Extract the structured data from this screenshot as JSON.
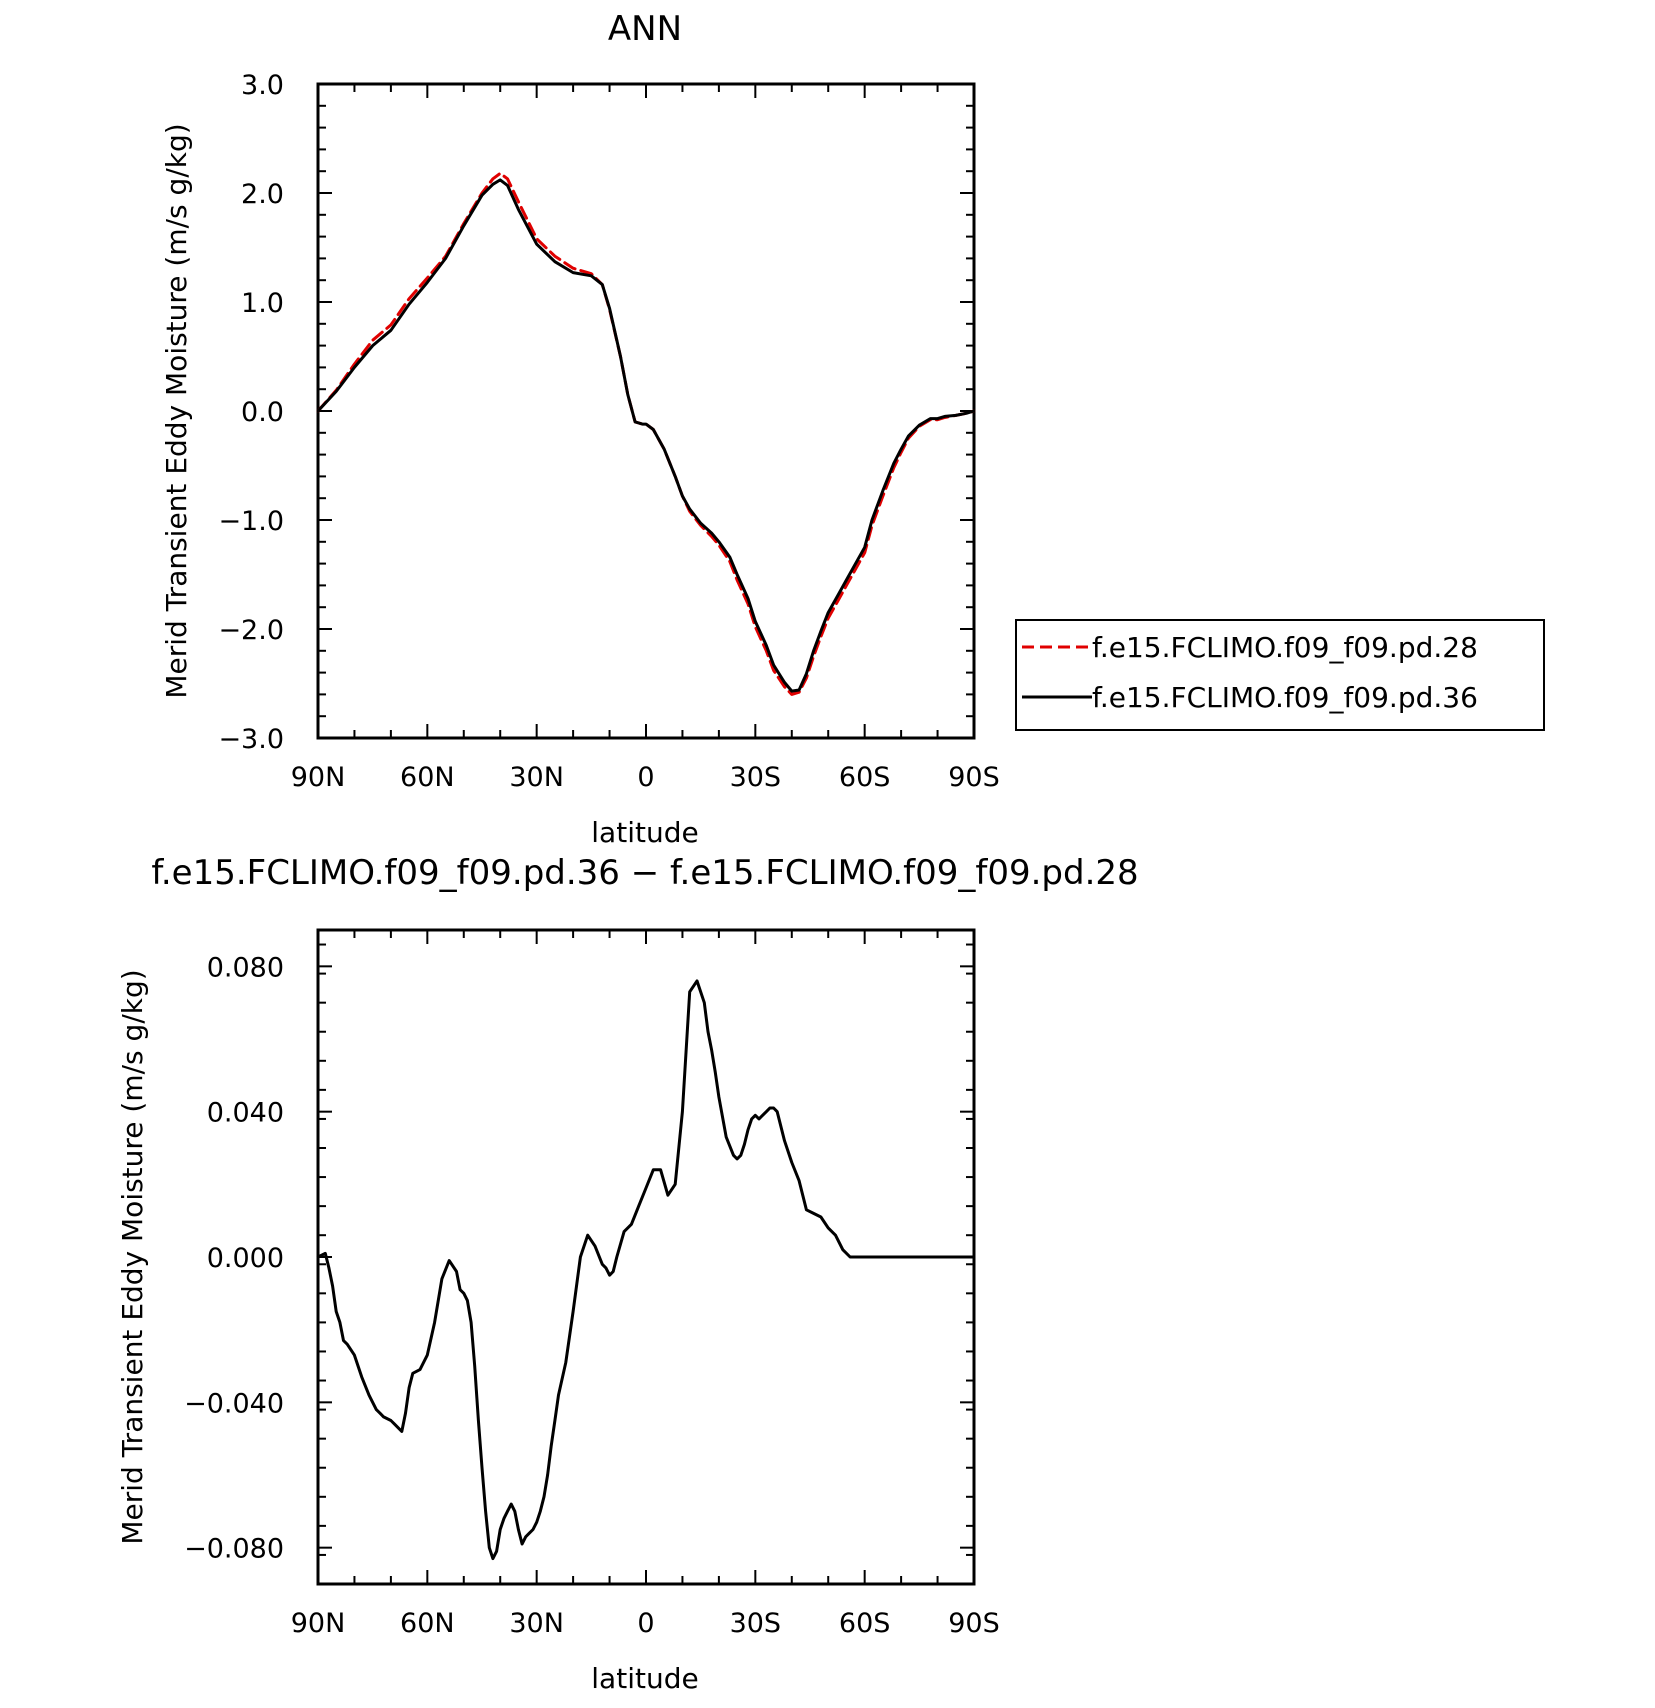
{
  "chart_data": [
    {
      "type": "line",
      "title": "ANN",
      "xlabel": "latitude",
      "ylabel": "Merid Transient Eddy Moisture (m/s g/kg)",
      "xlim": [
        90,
        -90
      ],
      "ylim": [
        -3.0,
        3.0
      ],
      "x_tick_values": [
        90,
        60,
        30,
        0,
        -30,
        -60,
        -90
      ],
      "x_tick_labels": [
        "90N",
        "60N",
        "30N",
        "0",
        "30S",
        "60S",
        "90S"
      ],
      "y_tick_values": [
        3.0,
        2.0,
        1.0,
        0.0,
        -1.0,
        -2.0,
        -3.0
      ],
      "y_tick_labels": [
        "3.0",
        "2.0",
        "1.0",
        "0.0",
        "−1.0",
        "−2.0",
        "−3.0"
      ],
      "grid": false,
      "legend_position": "right",
      "series": [
        {
          "name": "f.e15.FCLIMO.f09_f09.pd.28",
          "color": "#e00000",
          "dash": "dashed",
          "x": [
            90,
            85,
            80,
            75,
            70,
            65,
            60,
            55,
            50,
            45,
            42,
            40,
            38,
            35,
            30,
            25,
            20,
            15,
            12,
            10,
            7,
            5,
            3,
            1,
            0,
            -2,
            -5,
            -8,
            -10,
            -12,
            -15,
            -18,
            -20,
            -23,
            -25,
            -28,
            -30,
            -33,
            -35,
            -38,
            -40,
            -42,
            -44,
            -46,
            -48,
            -50,
            -53,
            -55,
            -58,
            -60,
            -62,
            -65,
            -68,
            -70,
            -72,
            -75,
            -78,
            -80,
            -82,
            -85,
            -88,
            -90
          ],
          "y": [
            0.0,
            0.19,
            0.43,
            0.65,
            0.79,
            1.03,
            1.22,
            1.42,
            1.72,
            2.0,
            2.13,
            2.18,
            2.13,
            1.92,
            1.58,
            1.42,
            1.31,
            1.26,
            1.16,
            0.93,
            0.5,
            0.15,
            -0.1,
            -0.12,
            -0.12,
            -0.17,
            -0.35,
            -0.6,
            -0.78,
            -0.92,
            -1.05,
            -1.15,
            -1.23,
            -1.38,
            -1.55,
            -1.77,
            -1.98,
            -2.2,
            -2.38,
            -2.53,
            -2.6,
            -2.58,
            -2.45,
            -2.25,
            -2.07,
            -1.9,
            -1.72,
            -1.6,
            -1.42,
            -1.3,
            -1.05,
            -0.78,
            -0.52,
            -0.38,
            -0.25,
            -0.14,
            -0.08,
            -0.08,
            -0.06,
            -0.04,
            -0.02,
            0.0
          ]
        },
        {
          "name": "f.e15.FCLIMO.f09_f09.pd.36",
          "color": "#000000",
          "dash": "solid",
          "x": [
            90,
            85,
            80,
            75,
            70,
            65,
            60,
            55,
            50,
            45,
            42,
            40,
            38,
            35,
            30,
            25,
            20,
            15,
            12,
            10,
            7,
            5,
            3,
            1,
            0,
            -2,
            -5,
            -8,
            -10,
            -12,
            -15,
            -18,
            -20,
            -23,
            -25,
            -28,
            -30,
            -33,
            -35,
            -38,
            -40,
            -42,
            -44,
            -46,
            -48,
            -50,
            -53,
            -55,
            -58,
            -60,
            -62,
            -65,
            -68,
            -70,
            -72,
            -75,
            -78,
            -80,
            -82,
            -85,
            -88,
            -90
          ],
          "y": [
            0.0,
            0.18,
            0.4,
            0.6,
            0.74,
            0.98,
            1.18,
            1.4,
            1.7,
            1.98,
            2.08,
            2.12,
            2.07,
            1.85,
            1.53,
            1.37,
            1.27,
            1.24,
            1.16,
            0.94,
            0.5,
            0.15,
            -0.1,
            -0.12,
            -0.12,
            -0.17,
            -0.35,
            -0.6,
            -0.78,
            -0.9,
            -1.03,
            -1.12,
            -1.2,
            -1.34,
            -1.5,
            -1.72,
            -1.93,
            -2.15,
            -2.33,
            -2.49,
            -2.57,
            -2.56,
            -2.41,
            -2.2,
            -2.02,
            -1.85,
            -1.67,
            -1.55,
            -1.37,
            -1.25,
            -1.0,
            -0.73,
            -0.48,
            -0.35,
            -0.23,
            -0.13,
            -0.07,
            -0.07,
            -0.05,
            -0.04,
            -0.02,
            0.0
          ]
        }
      ]
    },
    {
      "type": "line",
      "title": "f.e15.FCLIMO.f09_f09.pd.36 − f.e15.FCLIMO.f09_f09.pd.28",
      "xlabel": "latitude",
      "ylabel": "Merid Transient Eddy Moisture (m/s g/kg)",
      "xlim": [
        90,
        -90
      ],
      "ylim": [
        -0.09,
        0.09
      ],
      "x_tick_values": [
        90,
        60,
        30,
        0,
        -30,
        -60,
        -90
      ],
      "x_tick_labels": [
        "90N",
        "60N",
        "30N",
        "0",
        "30S",
        "60S",
        "90S"
      ],
      "y_tick_values": [
        0.08,
        0.04,
        0.0,
        -0.04,
        -0.08
      ],
      "y_tick_labels": [
        "0.080",
        "0.040",
        "0.000",
        "−0.040",
        "−0.080"
      ],
      "grid": false,
      "series": [
        {
          "color": "#000000",
          "dash": "solid",
          "x": [
            90,
            88,
            87,
            86,
            85,
            84,
            83,
            82,
            80,
            78,
            76,
            74,
            73,
            72,
            70,
            69,
            68,
            67,
            66,
            65,
            64,
            62,
            60,
            58,
            56,
            54,
            52,
            51,
            50,
            49,
            48,
            47,
            46,
            45,
            44,
            43,
            42,
            41,
            40,
            39,
            38,
            37,
            36,
            35,
            34,
            33,
            32,
            31,
            30,
            29,
            28,
            27,
            26,
            25,
            24,
            22,
            20,
            18,
            16,
            14,
            12,
            11,
            10,
            9,
            8,
            6,
            4,
            2,
            0,
            -2,
            -4,
            -6,
            -8,
            -10,
            -12,
            -14,
            -16,
            -17,
            -18,
            -19,
            -20,
            -22,
            -24,
            -25,
            -26,
            -27,
            -28,
            -29,
            -30,
            -31,
            -32,
            -33,
            -34,
            -35,
            -36,
            -38,
            -40,
            -42,
            -44,
            -46,
            -48,
            -50,
            -52,
            -54,
            -56,
            -58,
            -60,
            -62,
            -64,
            -66,
            -68,
            -70,
            -72,
            -74,
            -76,
            -78,
            -80,
            -82,
            -84,
            -86,
            -88,
            -89,
            -90
          ],
          "y": [
            0.0,
            0.001,
            -0.003,
            -0.008,
            -0.015,
            -0.018,
            -0.023,
            -0.024,
            -0.027,
            -0.033,
            -0.038,
            -0.042,
            -0.043,
            -0.044,
            -0.045,
            -0.046,
            -0.047,
            -0.048,
            -0.043,
            -0.036,
            -0.032,
            -0.031,
            -0.027,
            -0.018,
            -0.006,
            -0.001,
            -0.004,
            -0.009,
            -0.01,
            -0.012,
            -0.018,
            -0.03,
            -0.045,
            -0.058,
            -0.07,
            -0.08,
            -0.083,
            -0.081,
            -0.075,
            -0.072,
            -0.07,
            -0.068,
            -0.07,
            -0.075,
            -0.079,
            -0.077,
            -0.076,
            -0.075,
            -0.073,
            -0.07,
            -0.066,
            -0.06,
            -0.052,
            -0.045,
            -0.038,
            -0.029,
            -0.015,
            0.0,
            0.006,
            0.003,
            -0.002,
            -0.003,
            -0.005,
            -0.004,
            0.0,
            0.007,
            0.009,
            0.014,
            0.019,
            0.024,
            0.024,
            0.017,
            0.02,
            0.04,
            0.073,
            0.076,
            0.07,
            0.062,
            0.057,
            0.051,
            0.044,
            0.033,
            0.028,
            0.027,
            0.028,
            0.031,
            0.035,
            0.038,
            0.039,
            0.038,
            0.039,
            0.04,
            0.041,
            0.041,
            0.04,
            0.032,
            0.026,
            0.021,
            0.013,
            0.012,
            0.011,
            0.008,
            0.006,
            0.002,
            0.0,
            0.0,
            0.0,
            0.0,
            0.0,
            0.0,
            0.0,
            0.0,
            0.0,
            0.0,
            0.0,
            0.0,
            0.0,
            0.0,
            0.0,
            0.0,
            0.0,
            0.0,
            0.0
          ]
        }
      ]
    }
  ]
}
